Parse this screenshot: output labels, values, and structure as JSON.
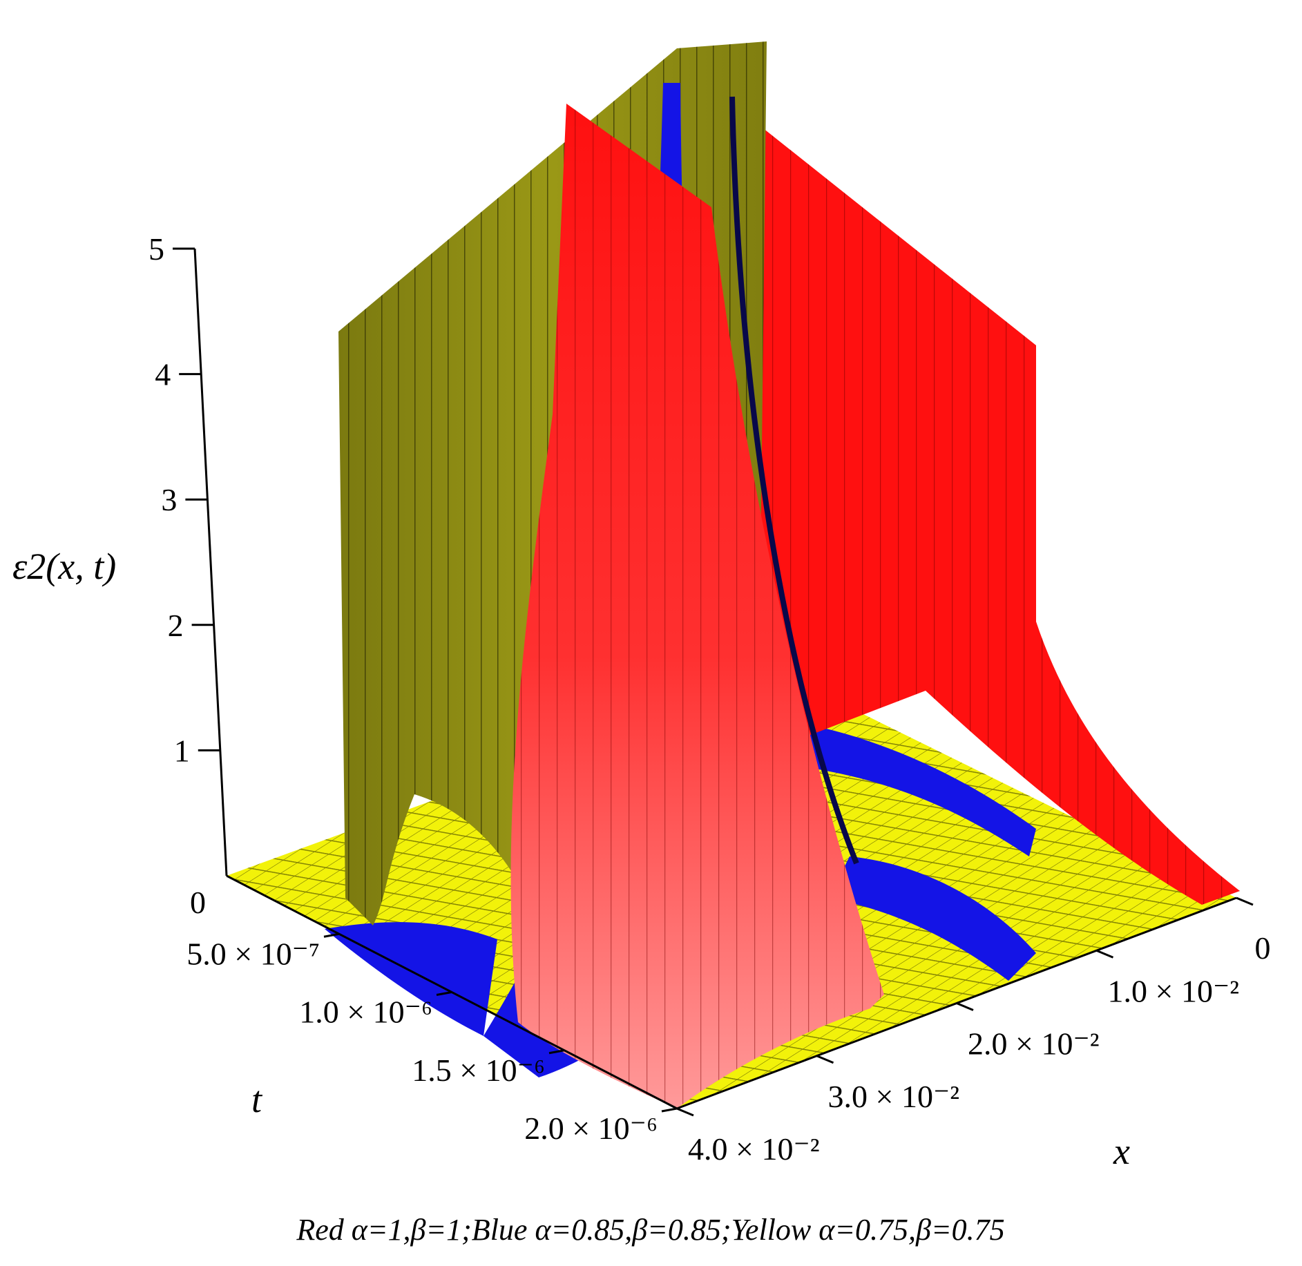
{
  "chart_data": {
    "type": "surface3d",
    "title": "",
    "xlabel": "x",
    "ylabel": "t",
    "zlabel": "ε2(x, t)",
    "xlim": [
      0,
      0.04
    ],
    "ylim": [
      0,
      2e-06
    ],
    "zlim": [
      0,
      5
    ],
    "x_ticks": [
      "0",
      "1.0 × 10⁻²",
      "2.0 × 10⁻²",
      "3.0 × 10⁻²",
      "4.0 × 10⁻²"
    ],
    "t_ticks": [
      "0",
      "5.0 × 10⁻⁷",
      "1.0 × 10⁻⁶",
      "1.5 × 10⁻⁶",
      "2.0 × 10⁻⁶"
    ],
    "z_ticks": [
      "0",
      "1",
      "2",
      "3",
      "4",
      "5"
    ],
    "caption": "Red α=1,β=1;Blue  α=0.85,β=0.85;Yellow α=0.75,β=0.75",
    "series": [
      {
        "label": "Red",
        "alpha": 1,
        "beta": 1,
        "color": "#ff1010"
      },
      {
        "label": "Blue",
        "alpha": 0.85,
        "beta": 0.85,
        "color": "#1414e6"
      },
      {
        "label": "Yellow",
        "alpha": 0.75,
        "beta": 0.75,
        "color": "#f2f20a"
      }
    ],
    "colors": {
      "red": "#ff1010",
      "red_light": "#ff8a8a",
      "blue": "#1414e6",
      "yellow": "#f2f20a",
      "olive": "#8c8a14"
    }
  }
}
